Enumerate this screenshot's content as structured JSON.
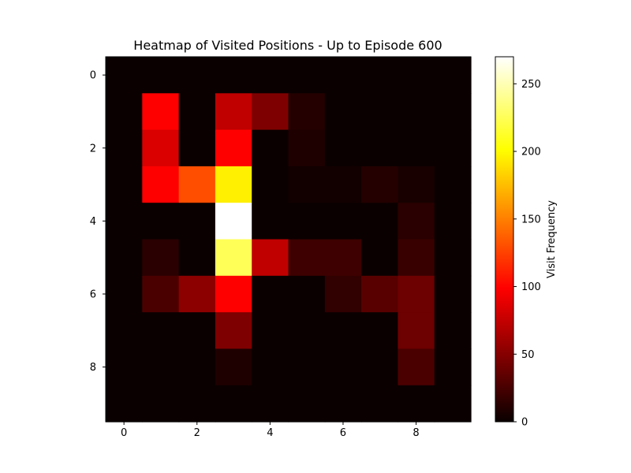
{
  "chart_data": {
    "type": "heatmap",
    "title": "Heatmap of Visited Positions - Up to Episode 600",
    "xlabel": "",
    "ylabel": "",
    "x_ticks": [
      0,
      2,
      4,
      6,
      8
    ],
    "y_ticks": [
      0,
      2,
      4,
      6,
      8
    ],
    "colorbar": {
      "label": "Visit Frequency",
      "range": [
        0,
        270
      ],
      "ticks": [
        0,
        50,
        100,
        150,
        200,
        250
      ],
      "colormap": "hot"
    },
    "values": [
      [
        0,
        0,
        0,
        0,
        0,
        0,
        0,
        0,
        0,
        0
      ],
      [
        0,
        95,
        0,
        70,
        45,
        10,
        0,
        0,
        0,
        0
      ],
      [
        0,
        80,
        0,
        95,
        0,
        8,
        0,
        0,
        0,
        0
      ],
      [
        0,
        95,
        130,
        195,
        0,
        3,
        3,
        10,
        5,
        0
      ],
      [
        0,
        0,
        0,
        270,
        0,
        0,
        0,
        0,
        12,
        0
      ],
      [
        0,
        12,
        0,
        225,
        70,
        20,
        20,
        0,
        18,
        0
      ],
      [
        0,
        25,
        50,
        95,
        0,
        0,
        15,
        30,
        38,
        0
      ],
      [
        0,
        0,
        0,
        45,
        0,
        0,
        0,
        0,
        38,
        0
      ],
      [
        0,
        0,
        0,
        8,
        0,
        0,
        0,
        0,
        25,
        0
      ],
      [
        0,
        0,
        0,
        0,
        0,
        0,
        0,
        0,
        0,
        0
      ]
    ]
  }
}
